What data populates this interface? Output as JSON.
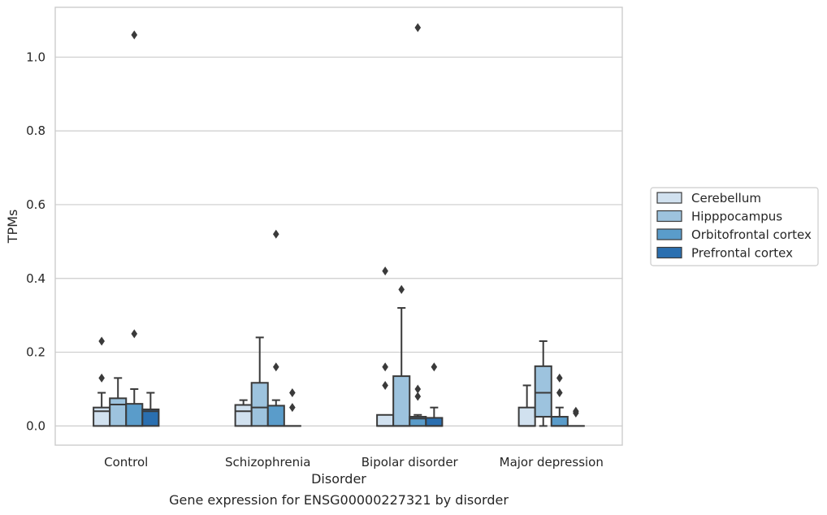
{
  "chart_data": {
    "type": "box",
    "title": "",
    "caption": "Gene expression for ENSG00000227321 by disorder",
    "xlabel": "Disorder",
    "ylabel": "TPMs",
    "ylim": [
      -0.052,
      1.135
    ],
    "yticks": [
      "0.0",
      "0.2",
      "0.4",
      "0.6",
      "0.8",
      "1.0"
    ],
    "ytick_values": [
      0.0,
      0.2,
      0.4,
      0.6,
      0.8,
      1.0
    ],
    "grid": "horizontal",
    "legend_position": "center-right",
    "categories": [
      "Control",
      "Schizophrenia",
      "Bipolar disorder",
      "Major depression"
    ],
    "series": [
      {
        "name": "Cerebellum",
        "color": "#d1e1ef",
        "boxes": [
          {
            "q1": 0.0,
            "median": 0.04,
            "q3": 0.05,
            "whisker_low": 0.0,
            "whisker_high": 0.09,
            "fliers": [
              0.13,
              0.23
            ]
          },
          {
            "q1": 0.0,
            "median": 0.04,
            "q3": 0.057,
            "whisker_low": 0.0,
            "whisker_high": 0.07,
            "fliers": []
          },
          {
            "q1": 0.0,
            "median": 0.0,
            "q3": 0.03,
            "whisker_low": 0.0,
            "whisker_high": 0.03,
            "fliers": [
              0.11,
              0.16,
              0.42
            ]
          },
          {
            "q1": 0.0,
            "median": 0.0,
            "q3": 0.05,
            "whisker_low": 0.0,
            "whisker_high": 0.11,
            "fliers": []
          }
        ]
      },
      {
        "name": "Hipppocampus",
        "color": "#9dc3de",
        "boxes": [
          {
            "q1": 0.0,
            "median": 0.058,
            "q3": 0.075,
            "whisker_low": 0.0,
            "whisker_high": 0.13,
            "fliers": []
          },
          {
            "q1": 0.0,
            "median": 0.05,
            "q3": 0.117,
            "whisker_low": 0.0,
            "whisker_high": 0.24,
            "fliers": []
          },
          {
            "q1": 0.0,
            "median": 0.0,
            "q3": 0.135,
            "whisker_low": 0.0,
            "whisker_high": 0.32,
            "fliers": [
              0.37
            ]
          },
          {
            "q1": 0.025,
            "median": 0.09,
            "q3": 0.162,
            "whisker_low": 0.0,
            "whisker_high": 0.23,
            "fliers": []
          }
        ]
      },
      {
        "name": "Orbitofrontal cortex",
        "color": "#5a9cca",
        "boxes": [
          {
            "q1": 0.0,
            "median": 0.0,
            "q3": 0.06,
            "whisker_low": 0.0,
            "whisker_high": 0.1,
            "fliers": [
              0.25,
              1.06
            ]
          },
          {
            "q1": 0.0,
            "median": 0.0,
            "q3": 0.055,
            "whisker_low": 0.0,
            "whisker_high": 0.07,
            "fliers": [
              0.16,
              0.52
            ]
          },
          {
            "q1": 0.0,
            "median": 0.02,
            "q3": 0.025,
            "whisker_low": 0.0,
            "whisker_high": 0.03,
            "fliers": [
              0.08,
              0.1,
              1.08
            ]
          },
          {
            "q1": 0.0,
            "median": 0.0,
            "q3": 0.025,
            "whisker_low": 0.0,
            "whisker_high": 0.05,
            "fliers": [
              0.09,
              0.13
            ]
          }
        ]
      },
      {
        "name": "Prefrontal cortex",
        "color": "#2a6fb0",
        "boxes": [
          {
            "q1": 0.0,
            "median": 0.04,
            "q3": 0.045,
            "whisker_low": 0.0,
            "whisker_high": 0.09,
            "fliers": []
          },
          {
            "q1": 0.0,
            "median": 0.0,
            "q3": 0.0,
            "whisker_low": 0.0,
            "whisker_high": 0.0,
            "fliers": [
              0.05,
              0.09
            ]
          },
          {
            "q1": 0.0,
            "median": 0.0,
            "q3": 0.022,
            "whisker_low": 0.0,
            "whisker_high": 0.05,
            "fliers": [
              0.16
            ]
          },
          {
            "q1": 0.0,
            "median": 0.0,
            "q3": 0.0,
            "whisker_low": 0.0,
            "whisker_high": 0.0,
            "fliers": [
              0.035,
              0.04
            ]
          }
        ]
      }
    ]
  }
}
